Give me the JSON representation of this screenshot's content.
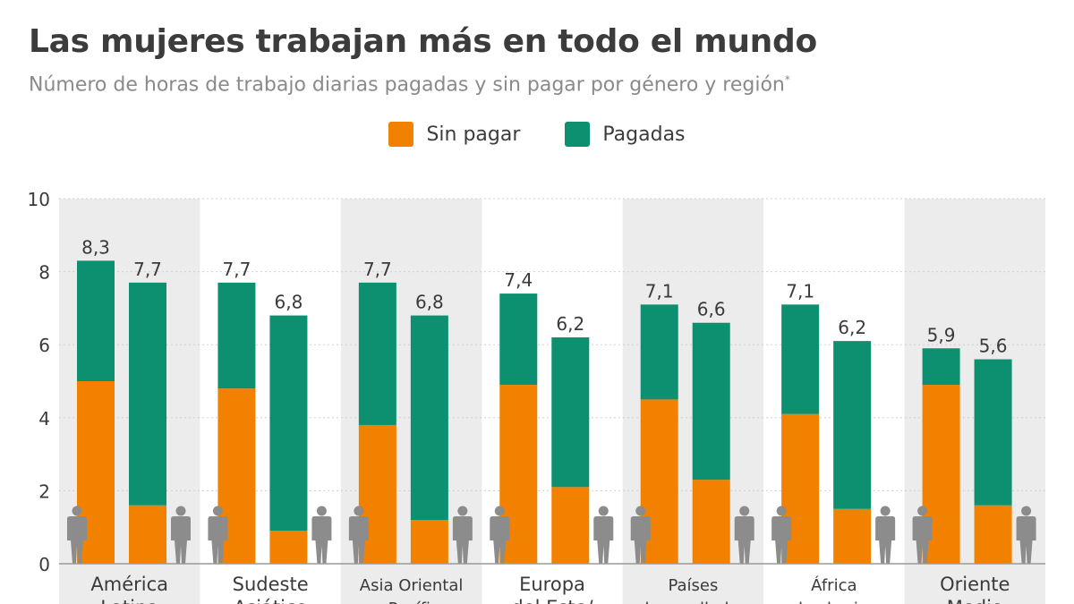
{
  "title": "Las mujeres trabajan más en todo el mundo",
  "subtitle": "Número de horas de trabajo diarias pagadas y sin pagar por género y región",
  "subtitle_mark": "*",
  "colors": {
    "unpaid": "#f28100",
    "paid": "#0d9070",
    "band": "#ececec",
    "grid": "#cfcfcf",
    "icon": "#8c8c8c"
  },
  "legend": [
    {
      "label": "Sin pagar",
      "color": "#f28100"
    },
    {
      "label": "Pagadas",
      "color": "#0d9070"
    }
  ],
  "chart_data": {
    "type": "bar",
    "stacked": true,
    "title": "Las mujeres trabajan más en todo el mundo",
    "ylim": [
      0,
      10
    ],
    "yticks": [
      0,
      2,
      4,
      6,
      8,
      10
    ],
    "categories": [
      {
        "label_lines": [
          "América",
          "Latina"
        ]
      },
      {
        "label_lines": [
          "Sudeste",
          "Asiático"
        ]
      },
      {
        "label_lines": [
          "Asia Oriental",
          "y Pacífico"
        ]
      },
      {
        "label_lines": [
          "Europa",
          "del Este/"
        ]
      },
      {
        "label_lines": [
          "Países",
          "desarrollados"
        ]
      },
      {
        "label_lines": [
          "África",
          "subsahariana"
        ]
      },
      {
        "label_lines": [
          "Oriente",
          "Medio"
        ]
      }
    ],
    "groups": [
      "Mujeres",
      "Hombres"
    ],
    "series": [
      {
        "name": "Sin pagar",
        "values_women": [
          5.0,
          4.8,
          3.8,
          4.9,
          4.5,
          4.1,
          4.9
        ],
        "values_men": [
          1.6,
          0.9,
          1.2,
          2.1,
          2.3,
          1.5,
          1.6
        ]
      },
      {
        "name": "Pagadas",
        "values_women": [
          3.3,
          2.9,
          3.9,
          2.5,
          2.6,
          3.0,
          1.0
        ],
        "values_men": [
          6.1,
          5.9,
          5.6,
          4.1,
          4.3,
          4.6,
          4.0
        ]
      }
    ],
    "totals_women": [
      "8,3",
      "7,7",
      "7,7",
      "7,4",
      "7,1",
      "7,1",
      "5,9"
    ],
    "totals_men": [
      "7,7",
      "6,8",
      "6,8",
      "6,2",
      "6,6",
      "6,2",
      "5,6"
    ]
  }
}
